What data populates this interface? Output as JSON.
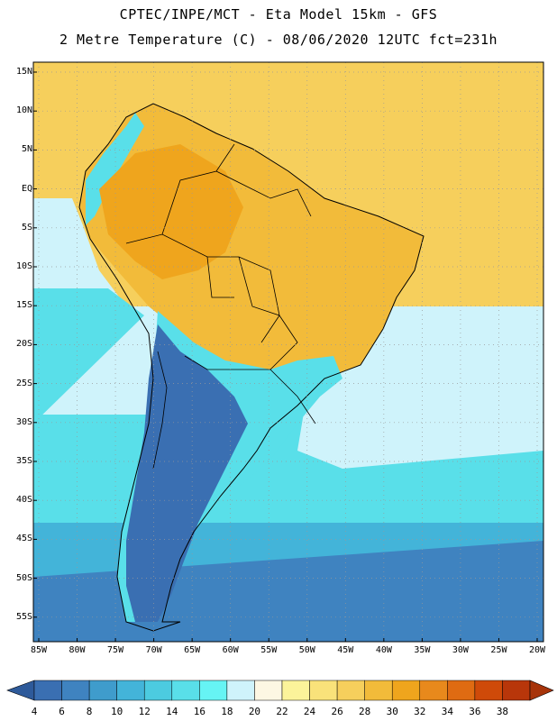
{
  "header": {
    "line1": "CPTEC/INPE/MCT -  Eta Model 15km - GFS",
    "line2": "2 Metre Temperature (C) - 08/06/2020 12UTC fct=231h"
  },
  "map": {
    "lat_labels": [
      "15N",
      "10N",
      "5N",
      "EQ",
      "5S",
      "10S",
      "15S",
      "20S",
      "25S",
      "30S",
      "35S",
      "40S",
      "45S",
      "50S",
      "55S"
    ],
    "lon_labels": [
      "85W",
      "80W",
      "75W",
      "70W",
      "65W",
      "60W",
      "55W",
      "50W",
      "45W",
      "40W",
      "35W",
      "30W",
      "25W",
      "20W"
    ]
  },
  "colorbar": {
    "ticks": [
      "4",
      "6",
      "8",
      "10",
      "12",
      "14",
      "16",
      "18",
      "20",
      "22",
      "24",
      "26",
      "28",
      "30",
      "32",
      "34",
      "36",
      "38"
    ],
    "colors": [
      "#3a6fb2",
      "#3f83c0",
      "#3f9ccc",
      "#43b4d9",
      "#4ccbe0",
      "#59dfe9",
      "#66f4f4",
      "#cff3fb",
      "#fdf7e3",
      "#fbf39a",
      "#f9e27a",
      "#f6cf5c",
      "#f2bb3a",
      "#efa51d",
      "#e8891c",
      "#df6b12",
      "#cf4a09",
      "#b8360a"
    ],
    "end_low": "#2e5a9a",
    "end_high": "#a7340a"
  },
  "palette": {
    "ocean_warm": "#f6cf5c",
    "ocean_hot": "#f2bb3a",
    "land_hot": "#efa51d",
    "ocean_cool": "#cff3fb",
    "ocean_mid": "#59dfe9",
    "ocean_cold": "#43b4d9",
    "land_cold": "#3a6fb2",
    "land_cool": "#3f83c0",
    "coast": "#000000"
  }
}
